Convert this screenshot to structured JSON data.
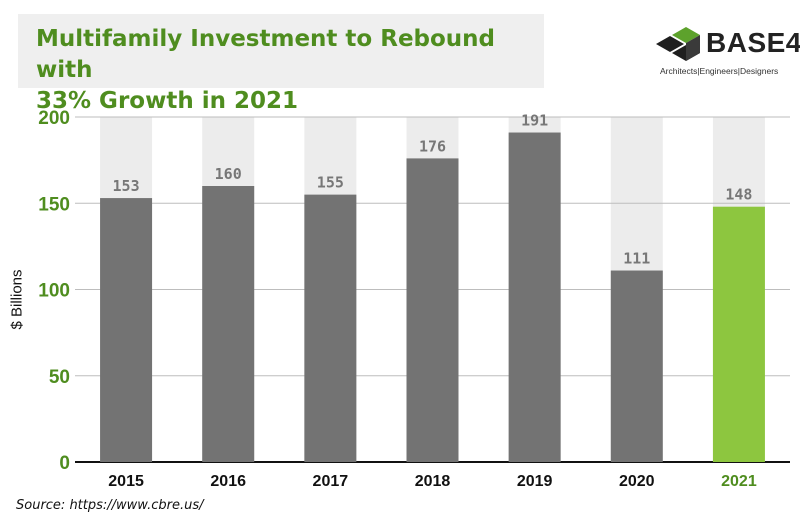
{
  "header": {
    "title_line1": "Multifamily Investment to Rebound with",
    "title_line2": "33% Growth in 2021"
  },
  "logo": {
    "wordmark": "BASE4",
    "tagline": "Architects|Engineers|Designers",
    "icon": "cube-icon"
  },
  "source": "Source: https://www.cbre.us/",
  "colors": {
    "title_green": "#4f8d1f",
    "bar_gray": "#737373",
    "bar_highlight": "#8dc63f",
    "background_band": "#ececec",
    "tick_green": "#4f8d1f"
  },
  "chart_data": {
    "type": "bar",
    "categories": [
      "2015",
      "2016",
      "2017",
      "2018",
      "2019",
      "2020",
      "2021"
    ],
    "values": [
      153,
      160,
      155,
      176,
      191,
      111,
      148
    ],
    "highlight": "2021",
    "xlabel": "",
    "ylabel": "$ Billions",
    "ylim": [
      0,
      200
    ],
    "yticks": [
      0,
      50,
      100,
      150,
      200
    ],
    "grid": true,
    "data_labels": true
  }
}
